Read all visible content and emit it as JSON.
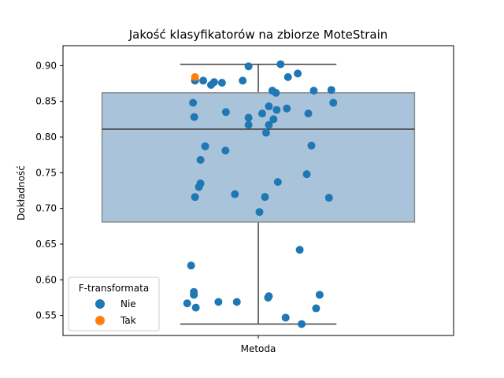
{
  "chart_data": {
    "type": "box-strip",
    "title": "Jakość klasyfikatorów na zbiorze MoteStrain",
    "xlabel": "",
    "ylabel": "Dokładność",
    "categories": [
      "Metoda"
    ],
    "ylim": [
      0.522,
      0.928
    ],
    "yticks": [
      0.55,
      0.6,
      0.65,
      0.7,
      0.75,
      0.8,
      0.85,
      0.9
    ],
    "ytick_labels": [
      "0.55",
      "0.60",
      "0.65",
      "0.70",
      "0.75",
      "0.80",
      "0.85",
      "0.90"
    ],
    "grid": false,
    "box": {
      "whisker_low": 0.538,
      "q1": 0.681,
      "median": 0.811,
      "q3": 0.862,
      "whisker_high": 0.902,
      "fill_color": "#a9c4da",
      "edge_color": "#8a8a8a"
    },
    "legend": {
      "title": "F-transformata",
      "position": "lower-left",
      "entries": [
        {
          "label": "Nie",
          "color": "#1f77b4"
        },
        {
          "label": "Tak",
          "color": "#ff7f0e"
        }
      ]
    },
    "series": [
      {
        "name": "Nie",
        "color": "#1f77b4",
        "points": [
          [
            -0.162,
            0.879
          ],
          [
            -0.141,
            0.879
          ],
          [
            -0.121,
            0.873
          ],
          [
            -0.113,
            0.877
          ],
          [
            -0.093,
            0.876
          ],
          [
            -0.04,
            0.879
          ],
          [
            -0.025,
            0.899
          ],
          [
            0.057,
            0.902
          ],
          [
            0.076,
            0.884
          ],
          [
            0.101,
            0.889
          ],
          [
            0.142,
            0.865
          ],
          [
            0.187,
            0.866
          ],
          [
            0.036,
            0.865
          ],
          [
            0.045,
            0.862
          ],
          [
            -0.167,
            0.848
          ],
          [
            0.192,
            0.848
          ],
          [
            -0.083,
            0.835
          ],
          [
            0.027,
            0.843
          ],
          [
            0.047,
            0.838
          ],
          [
            0.073,
            0.84
          ],
          [
            0.01,
            0.833
          ],
          [
            -0.164,
            0.828
          ],
          [
            -0.025,
            0.827
          ],
          [
            0.039,
            0.825
          ],
          [
            0.128,
            0.833
          ],
          [
            -0.025,
            0.817
          ],
          [
            0.027,
            0.817
          ],
          [
            0.02,
            0.806
          ],
          [
            -0.136,
            0.787
          ],
          [
            -0.084,
            0.781
          ],
          [
            0.136,
            0.788
          ],
          [
            -0.148,
            0.768
          ],
          [
            0.124,
            0.748
          ],
          [
            0.05,
            0.737
          ],
          [
            -0.148,
            0.735
          ],
          [
            -0.152,
            0.73
          ],
          [
            -0.06,
            0.72
          ],
          [
            -0.162,
            0.716
          ],
          [
            0.017,
            0.716
          ],
          [
            0.181,
            0.715
          ],
          [
            0.003,
            0.695
          ],
          [
            0.106,
            0.642
          ],
          [
            -0.172,
            0.62
          ],
          [
            -0.165,
            0.583
          ],
          [
            -0.165,
            0.579
          ],
          [
            0.027,
            0.577
          ],
          [
            0.025,
            0.575
          ],
          [
            0.157,
            0.579
          ],
          [
            -0.102,
            0.569
          ],
          [
            -0.055,
            0.569
          ],
          [
            -0.182,
            0.567
          ],
          [
            -0.16,
            0.561
          ],
          [
            0.148,
            0.56
          ],
          [
            0.07,
            0.547
          ],
          [
            0.111,
            0.538
          ]
        ]
      },
      {
        "name": "Tak",
        "color": "#ff7f0e",
        "points": [
          [
            -0.162,
            0.884
          ]
        ]
      }
    ]
  }
}
